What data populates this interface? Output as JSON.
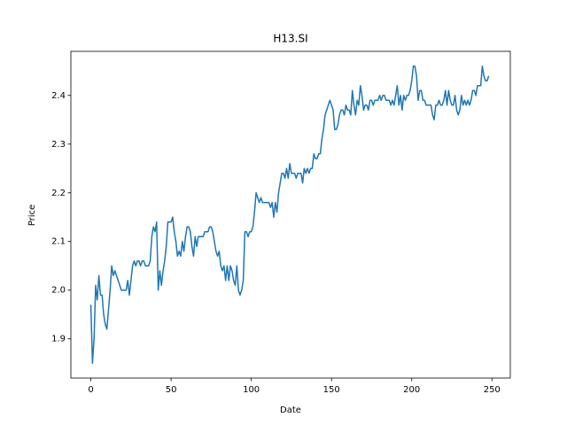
{
  "chart_data": {
    "type": "line",
    "title": "H13.SI",
    "xlabel": "Date",
    "ylabel": "Price",
    "color": "#1f77b4",
    "x": [
      0,
      1,
      2,
      3,
      4,
      5,
      6,
      7,
      8,
      9,
      10,
      11,
      12,
      13,
      14,
      15,
      16,
      17,
      18,
      19,
      20,
      21,
      22,
      23,
      24,
      25,
      26,
      27,
      28,
      29,
      30,
      31,
      32,
      33,
      34,
      35,
      36,
      37,
      38,
      39,
      40,
      41,
      42,
      43,
      44,
      45,
      46,
      47,
      48,
      49,
      50,
      51,
      52,
      53,
      54,
      55,
      56,
      57,
      58,
      59,
      60,
      61,
      62,
      63,
      64,
      65,
      66,
      67,
      68,
      69,
      70,
      71,
      72,
      73,
      74,
      75,
      76,
      77,
      78,
      79,
      80,
      81,
      82,
      83,
      84,
      85,
      86,
      87,
      88,
      89,
      90,
      91,
      92,
      93,
      94,
      95,
      96,
      97,
      98,
      99,
      100,
      101,
      102,
      103,
      104,
      105,
      106,
      107,
      108,
      109,
      110,
      111,
      112,
      113,
      114,
      115,
      116,
      117,
      118,
      119,
      120,
      121,
      122,
      123,
      124,
      125,
      126,
      127,
      128,
      129,
      130,
      131,
      132,
      133,
      134,
      135,
      136,
      137,
      138,
      139,
      140,
      141,
      142,
      143,
      144,
      145,
      146,
      147,
      148,
      149,
      150,
      151,
      152,
      153,
      154,
      155,
      156,
      157,
      158,
      159,
      160,
      161,
      162,
      163,
      164,
      165,
      166,
      167,
      168,
      169,
      170,
      171,
      172,
      173,
      174,
      175,
      176,
      177,
      178,
      179,
      180,
      181,
      182,
      183,
      184,
      185,
      186,
      187,
      188,
      189,
      190,
      191,
      192,
      193,
      194,
      195,
      196,
      197,
      198,
      199,
      200,
      201,
      202,
      203,
      204,
      205,
      206,
      207,
      208,
      209,
      210,
      211,
      212,
      213,
      214,
      215,
      216,
      217,
      218,
      219,
      220,
      221,
      222,
      223,
      224,
      225,
      226,
      227,
      228,
      229,
      230,
      231,
      232,
      233,
      234,
      235,
      236,
      237,
      238,
      239,
      240,
      241,
      242,
      243,
      244,
      245,
      246,
      247,
      248
    ],
    "values": [
      1.97,
      1.85,
      1.9,
      2.01,
      1.98,
      2.03,
      1.99,
      1.99,
      1.95,
      1.93,
      1.92,
      1.96,
      2.0,
      2.05,
      2.03,
      2.04,
      2.03,
      2.02,
      2.01,
      2.0,
      2.0,
      2.0,
      2.0,
      2.02,
      1.99,
      2.02,
      2.05,
      2.06,
      2.05,
      2.06,
      2.06,
      2.05,
      2.06,
      2.06,
      2.05,
      2.05,
      2.05,
      2.06,
      2.11,
      2.13,
      2.12,
      2.14,
      2.0,
      2.04,
      2.01,
      2.04,
      2.06,
      2.09,
      2.14,
      2.14,
      2.14,
      2.15,
      2.12,
      2.1,
      2.07,
      2.08,
      2.07,
      2.1,
      2.08,
      2.11,
      2.13,
      2.13,
      2.12,
      2.09,
      2.07,
      2.11,
      2.09,
      2.11,
      2.11,
      2.11,
      2.11,
      2.12,
      2.12,
      2.12,
      2.13,
      2.13,
      2.12,
      2.1,
      2.08,
      2.07,
      2.08,
      2.05,
      2.04,
      2.05,
      2.02,
      2.05,
      2.02,
      2.05,
      2.04,
      2.02,
      2.01,
      2.05,
      2.0,
      1.99,
      2.0,
      2.02,
      2.12,
      2.12,
      2.11,
      2.12,
      2.12,
      2.13,
      2.16,
      2.2,
      2.19,
      2.18,
      2.19,
      2.18,
      2.18,
      2.18,
      2.18,
      2.18,
      2.17,
      2.18,
      2.15,
      2.18,
      2.16,
      2.2,
      2.22,
      2.24,
      2.24,
      2.23,
      2.25,
      2.23,
      2.26,
      2.24,
      2.24,
      2.24,
      2.23,
      2.24,
      2.24,
      2.24,
      2.22,
      2.25,
      2.24,
      2.25,
      2.24,
      2.25,
      2.25,
      2.28,
      2.27,
      2.27,
      2.28,
      2.28,
      2.31,
      2.33,
      2.36,
      2.37,
      2.38,
      2.39,
      2.38,
      2.37,
      2.33,
      2.33,
      2.34,
      2.36,
      2.37,
      2.37,
      2.36,
      2.38,
      2.37,
      2.37,
      2.36,
      2.41,
      2.38,
      2.36,
      2.39,
      2.38,
      2.42,
      2.4,
      2.37,
      2.38,
      2.38,
      2.37,
      2.39,
      2.39,
      2.38,
      2.39,
      2.39,
      2.39,
      2.4,
      2.39,
      2.4,
      2.4,
      2.39,
      2.39,
      2.39,
      2.38,
      2.39,
      2.38,
      2.4,
      2.42,
      2.38,
      2.4,
      2.37,
      2.4,
      2.39,
      2.4,
      2.4,
      2.41,
      2.43,
      2.46,
      2.46,
      2.44,
      2.39,
      2.41,
      2.41,
      2.39,
      2.39,
      2.38,
      2.38,
      2.38,
      2.38,
      2.36,
      2.35,
      2.38,
      2.38,
      2.39,
      2.38,
      2.38,
      2.39,
      2.41,
      2.38,
      2.41,
      2.39,
      2.38,
      2.38,
      2.4,
      2.37,
      2.36,
      2.37,
      2.4,
      2.38,
      2.39,
      2.38,
      2.39,
      2.38,
      2.39,
      2.41,
      2.41,
      2.4,
      2.42,
      2.42,
      2.42,
      2.46,
      2.44,
      2.43,
      2.43,
      2.44
    ],
    "xlim": [
      -12.45,
      261.45
    ],
    "ylim": [
      1.8195,
      2.4905
    ],
    "xticks": [
      0,
      50,
      100,
      150,
      200,
      250
    ],
    "yticks": [
      1.9,
      {
        "value": 2,
        "label": "2.0"
      },
      2.1,
      2.2,
      2.3,
      2.4
    ]
  }
}
